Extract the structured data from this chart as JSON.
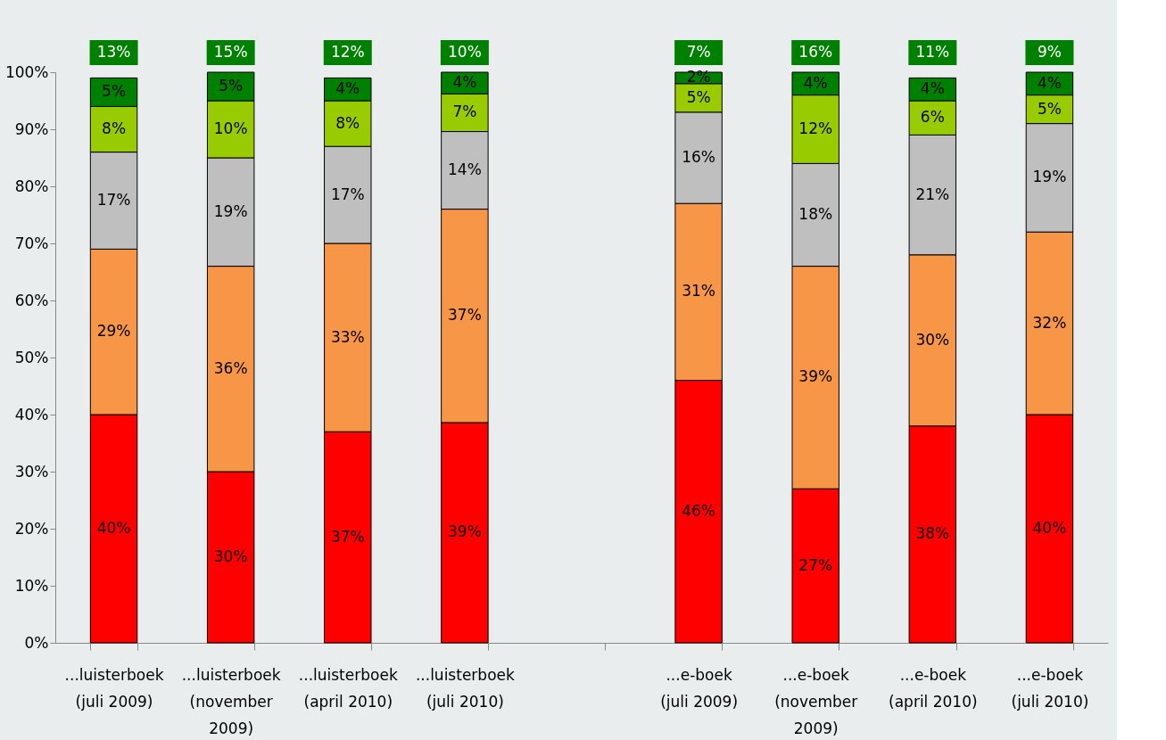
{
  "chart_data": {
    "type": "bar",
    "stacked": true,
    "categories": [
      "...luisterboek (juli 2009)",
      "...luisterboek (november 2009)",
      "...luisterboek (april 2010)",
      "...luisterboek (juli 2010)",
      null,
      "...e-boek (juli 2009)",
      "...e-boek (november 2009)",
      "...e-boek (april 2010)",
      "...e-boek (juli 2010)"
    ],
    "series": [
      {
        "color": "#ff0000",
        "values": [
          40,
          30,
          37,
          38.6,
          null,
          46,
          27,
          38,
          40
        ],
        "value_labels": [
          "40%",
          "30%",
          "37%",
          "39%",
          null,
          "46%",
          "27%",
          "38%",
          "40%"
        ]
      },
      {
        "color": "#f79646",
        "values": [
          29,
          36,
          33,
          37.4,
          null,
          31,
          39,
          30,
          32
        ],
        "value_labels": [
          "29%",
          "36%",
          "33%",
          "37%",
          null,
          "31%",
          "39%",
          "30%",
          "32%"
        ]
      },
      {
        "color": "#bfbfbf",
        "values": [
          17,
          19,
          17,
          13.6,
          null,
          16,
          18,
          21,
          19
        ],
        "value_labels": [
          "17%",
          "19%",
          "17%",
          "14%",
          null,
          "16%",
          "18%",
          "21%",
          "19%"
        ]
      },
      {
        "color": "#99cc00",
        "values": [
          8,
          10,
          8,
          6.6,
          null,
          5,
          12,
          6,
          5
        ],
        "value_labels": [
          "8%",
          "10%",
          "8%",
          "7%",
          null,
          "5%",
          "12%",
          "6%",
          "5%"
        ]
      },
      {
        "color": "#008000",
        "values": [
          5,
          5,
          4,
          3.8,
          null,
          2,
          4,
          4,
          4
        ],
        "value_labels": [
          "5%",
          "5%",
          "4%",
          "4%",
          null,
          "2%",
          "4%",
          "4%",
          "4%"
        ]
      }
    ],
    "annotations": [
      "13%",
      "15%",
      "12%",
      "10%",
      "7%",
      "16%",
      "11%",
      "9%"
    ],
    "ylim": [
      0,
      100
    ],
    "yticks": [
      {
        "value": 0,
        "label": "0%"
      },
      {
        "value": 10,
        "label": "10%"
      },
      {
        "value": 20,
        "label": "20%"
      },
      {
        "value": 30,
        "label": "30%"
      },
      {
        "value": 40,
        "label": "40%"
      },
      {
        "value": 50,
        "label": "50%"
      },
      {
        "value": 60,
        "label": "60%"
      },
      {
        "value": 70,
        "label": "70%"
      },
      {
        "value": 80,
        "label": "80%"
      },
      {
        "value": 90,
        "label": "90%"
      },
      {
        "value": 100,
        "label": "100%"
      }
    ],
    "grid": false
  }
}
